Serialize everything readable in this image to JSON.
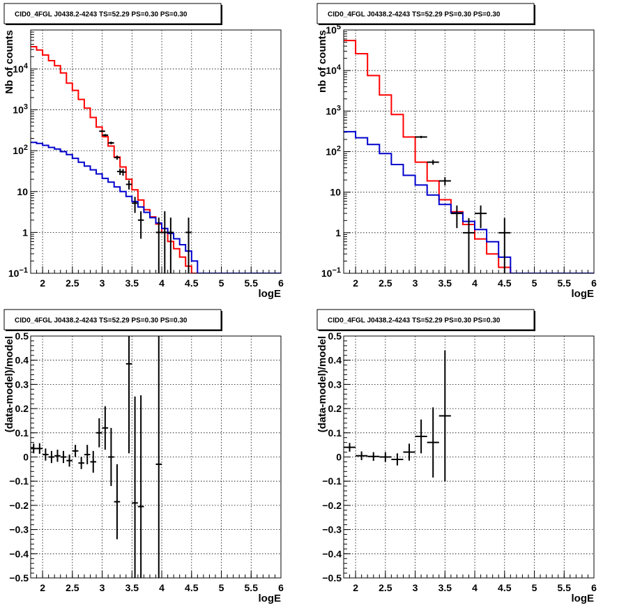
{
  "colors": {
    "data": "#000000",
    "total_model": "#ff0000",
    "background_model": "#0000cc",
    "grid": "#000000"
  },
  "chart_data": [
    {
      "type": "step-histogram",
      "title": "CID0_4FGL J0438.2-4243 TS=52.29 PS=0.30 PS=0.30",
      "xlabel": "logE",
      "ylabel": "Nb of counts",
      "yscale": "log",
      "xlim": [
        1.8,
        6.0
      ],
      "ylim": [
        0.1,
        90000
      ],
      "x_ticks": [
        "2",
        "2.5",
        "3",
        "3.5",
        "4",
        "4.5",
        "5",
        "5.5",
        "6"
      ],
      "y_ticks": [
        {
          "value": 0.1,
          "base": "10",
          "exp": "−1"
        },
        {
          "value": 1,
          "label": "1"
        },
        {
          "value": 10,
          "label": "10"
        },
        {
          "value": 100,
          "base": "10",
          "exp": "2"
        },
        {
          "value": 1000,
          "base": "10",
          "exp": "3"
        },
        {
          "value": 10000,
          "base": "10",
          "exp": "4"
        }
      ],
      "grid": true,
      "bin_edges": [
        1.8,
        1.9,
        2.0,
        2.1,
        2.2,
        2.3,
        2.4,
        2.5,
        2.6,
        2.7,
        2.8,
        2.9,
        3.0,
        3.1,
        3.2,
        3.3,
        3.4,
        3.5,
        3.6,
        3.7,
        3.8,
        3.9,
        4.0,
        4.1,
        4.2,
        4.3,
        4.4,
        4.5,
        4.6,
        4.7,
        4.8,
        4.9,
        5.0,
        5.1,
        5.2,
        5.3,
        5.4,
        5.5,
        5.6,
        5.7,
        5.8,
        5.9,
        6.0
      ],
      "series": [
        {
          "role": "total_model",
          "values": [
            35000,
            29000,
            22000,
            16000,
            12000,
            8000,
            4500,
            3000,
            1800,
            1100,
            650,
            380,
            220,
            130,
            70,
            40,
            20,
            11,
            6.2,
            3.6,
            2.4,
            1.6,
            1.0,
            0.6,
            0.4,
            0.25,
            0.15,
            0.1,
            0.09,
            0.09,
            0.09,
            0.09,
            0.09,
            0.09,
            0.09,
            0.09,
            0.09,
            0.09,
            0.09,
            0.09,
            0.09,
            0.09
          ]
        },
        {
          "role": "background_model",
          "values": [
            160,
            150,
            135,
            120,
            110,
            95,
            80,
            65,
            52,
            42,
            34,
            27,
            21,
            17,
            13,
            10,
            7.6,
            5.7,
            4.2,
            3.1,
            2.3,
            1.7,
            1.25,
            0.95,
            0.7,
            0.5,
            0.35,
            0.2,
            0.1,
            0.1,
            0.1,
            0.1,
            0.1,
            0.1,
            0.1,
            0.1,
            0.1,
            0.1,
            0.1,
            0.1,
            0.1,
            0.1
          ]
        }
      ],
      "points": [
        {
          "x": 3.0,
          "y": 300,
          "yerr": [
            17,
            17
          ],
          "xerr": 0.05
        },
        {
          "x": 3.05,
          "y": 240,
          "yerr": [
            15,
            15
          ],
          "xerr": 0.05
        },
        {
          "x": 3.15,
          "y": 155,
          "yerr": [
            12,
            12
          ],
          "xerr": 0.05
        },
        {
          "x": 3.25,
          "y": 68,
          "yerr": [
            8,
            8
          ],
          "xerr": 0.05
        },
        {
          "x": 3.3,
          "y": 31,
          "yerr": [
            5.5,
            5.5
          ],
          "xerr": 0.05
        },
        {
          "x": 3.35,
          "y": 30,
          "yerr": [
            5.5,
            5.5
          ],
          "xerr": 0.05
        },
        {
          "x": 3.45,
          "y": 15,
          "yerr": [
            3.8,
            3.8
          ],
          "xerr": 0.05
        },
        {
          "x": 3.55,
          "y": 5.2,
          "yerr": [
            2.2,
            2.2
          ],
          "xerr": 0.05
        },
        {
          "x": 3.65,
          "y": 2.0,
          "yerr": [
            1.3,
            1.3
          ],
          "xerr": 0.05
        },
        {
          "x": 3.95,
          "y": 1.0,
          "yerr": [
            0.95,
            1.3
          ],
          "xerr": 0.05
        },
        {
          "x": 4.05,
          "y": 1.0,
          "yerr": [
            0.95,
            2.3
          ],
          "xerr": 0.05
        },
        {
          "x": 4.15,
          "y": 1.0,
          "yerr": [
            0.95,
            1.3
          ],
          "xerr": 0.05
        },
        {
          "x": 4.45,
          "y": 1.0,
          "yerr": [
            0.95,
            1.3
          ],
          "xerr": 0.05
        }
      ]
    },
    {
      "type": "step-histogram",
      "title": "CID0_4FGL J0438.2-4243 TS=52.29 PS=0.30 PS=0.30",
      "xlabel": "logE",
      "ylabel": "nb of counts",
      "yscale": "log",
      "xlim": [
        1.8,
        6.0
      ],
      "ylim": [
        0.1,
        100000
      ],
      "x_ticks": [
        "2",
        "2.5",
        "3",
        "3.5",
        "4",
        "4.5",
        "5",
        "5.5",
        "6"
      ],
      "y_ticks": [
        {
          "value": 0.1,
          "base": "10",
          "exp": "−1"
        },
        {
          "value": 1,
          "label": "1"
        },
        {
          "value": 10,
          "label": "10"
        },
        {
          "value": 100,
          "base": "10",
          "exp": "2"
        },
        {
          "value": 1000,
          "base": "10",
          "exp": "3"
        },
        {
          "value": 10000,
          "base": "10",
          "exp": "4"
        },
        {
          "value": 100000,
          "base": "10",
          "exp": "5"
        }
      ],
      "grid": true,
      "bin_edges": [
        1.8,
        2.0,
        2.2,
        2.4,
        2.6,
        2.8,
        3.0,
        3.2,
        3.4,
        3.6,
        3.8,
        4.0,
        4.2,
        4.4,
        4.6,
        4.8,
        5.0,
        5.2,
        5.4,
        5.6,
        5.8,
        6.0
      ],
      "series": [
        {
          "role": "total_model",
          "values": [
            55000,
            26000,
            7500,
            2500,
            820,
            230,
            55,
            19,
            6.5,
            3.3,
            1.6,
            0.7,
            0.3,
            0.14,
            0.1,
            0.1,
            0.1,
            0.1,
            0.1,
            0.1,
            0.1
          ]
        },
        {
          "role": "background_model",
          "values": [
            310,
            220,
            150,
            90,
            48,
            26,
            15,
            8.5,
            5.0,
            3.1,
            1.9,
            1.2,
            0.6,
            0.25,
            0.1,
            0.1,
            0.1,
            0.1,
            0.1,
            0.1,
            0.1
          ]
        }
      ],
      "points": [
        {
          "x": 3.1,
          "y": 230,
          "yerr": [
            15,
            15
          ],
          "xerr": 0.1
        },
        {
          "x": 3.3,
          "y": 55,
          "yerr": [
            7.4,
            7.4
          ],
          "xerr": 0.1
        },
        {
          "x": 3.5,
          "y": 19,
          "yerr": [
            4.4,
            4.4
          ],
          "xerr": 0.1
        },
        {
          "x": 3.7,
          "y": 3.0,
          "yerr": [
            1.7,
            1.7
          ],
          "xerr": 0.1
        },
        {
          "x": 3.9,
          "y": 1.0,
          "yerr": [
            0.95,
            1.3
          ],
          "xerr": 0.1
        },
        {
          "x": 4.1,
          "y": 3.0,
          "yerr": [
            1.7,
            1.7
          ],
          "xerr": 0.1
        },
        {
          "x": 4.5,
          "y": 1.0,
          "yerr": [
            0.95,
            1.3
          ],
          "xerr": 0.1
        }
      ]
    },
    {
      "type": "scatter",
      "title": "CID0_4FGL J0438.2-4243 TS=52.29 PS=0.30 PS=0.30",
      "xlabel": "logE",
      "ylabel": "(data-model)/model",
      "yscale": "linear",
      "xlim": [
        1.8,
        6.0
      ],
      "ylim": [
        -0.5,
        0.5
      ],
      "x_ticks": [
        "2",
        "2.5",
        "3",
        "3.5",
        "4",
        "4.5",
        "5",
        "5.5",
        "6"
      ],
      "y_ticks": [
        "−0.5",
        "−0.4",
        "−0.3",
        "−0.2",
        "−0.1",
        "0",
        "0.1",
        "0.2",
        "0.3",
        "0.4",
        "0.5"
      ],
      "grid": true,
      "points": [
        {
          "x": 1.85,
          "y": 0.035,
          "xerr": 0.05,
          "yerr": 0.02
        },
        {
          "x": 1.95,
          "y": 0.035,
          "xerr": 0.05,
          "yerr": 0.022
        },
        {
          "x": 2.05,
          "y": 0.01,
          "xerr": 0.05,
          "yerr": 0.025
        },
        {
          "x": 2.15,
          "y": 0.0,
          "xerr": 0.05,
          "yerr": 0.025
        },
        {
          "x": 2.25,
          "y": 0.005,
          "xerr": 0.05,
          "yerr": 0.025
        },
        {
          "x": 2.35,
          "y": 0.0,
          "xerr": 0.05,
          "yerr": 0.025
        },
        {
          "x": 2.45,
          "y": -0.015,
          "xerr": 0.05,
          "yerr": 0.025
        },
        {
          "x": 2.55,
          "y": 0.025,
          "xerr": 0.05,
          "yerr": 0.025
        },
        {
          "x": 2.65,
          "y": -0.025,
          "xerr": 0.05,
          "yerr": 0.025
        },
        {
          "x": 2.75,
          "y": 0.01,
          "xerr": 0.05,
          "yerr": 0.04
        },
        {
          "x": 2.85,
          "y": -0.02,
          "xerr": 0.05,
          "yerr": 0.045
        },
        {
          "x": 2.95,
          "y": 0.1,
          "xerr": 0.05,
          "yerr": 0.06
        },
        {
          "x": 3.05,
          "y": 0.12,
          "xerr": 0.05,
          "yerr": 0.09
        },
        {
          "x": 3.15,
          "y": 0.0,
          "xerr": 0.05,
          "yerr": 0.12
        },
        {
          "x": 3.25,
          "y": -0.185,
          "xerr": 0.05,
          "yerr": 0.155
        },
        {
          "x": 3.45,
          "y": 0.385,
          "xerr": 0.05,
          "yerr": 0.37
        },
        {
          "x": 3.55,
          "y": -0.19,
          "xerr": 0.05,
          "yerr": 0.44
        },
        {
          "x": 3.65,
          "y": -0.205,
          "xerr": 0.05,
          "yerr": 0.46
        },
        {
          "x": 3.95,
          "y": -0.03,
          "xerr": 0.05,
          "yerr": 0.95
        }
      ]
    },
    {
      "type": "scatter",
      "title": "CID0_4FGL J0438.2-4243 TS=52.29 PS=0.30 PS=0.30",
      "xlabel": "logE",
      "ylabel": "(data-model)/model",
      "yscale": "linear",
      "xlim": [
        1.8,
        6.0
      ],
      "ylim": [
        -0.5,
        0.5
      ],
      "x_ticks": [
        "2",
        "2.5",
        "3",
        "3.5",
        "4",
        "4.5",
        "5",
        "5.5",
        "6"
      ],
      "y_ticks": [
        "−0.5",
        "−0.4",
        "−0.3",
        "−0.2",
        "−0.1",
        "0",
        "0.1",
        "0.2",
        "0.3",
        "0.4",
        "0.5"
      ],
      "grid": true,
      "points": [
        {
          "x": 1.9,
          "y": 0.04,
          "xerr": 0.1,
          "yerr": 0.018
        },
        {
          "x": 2.1,
          "y": 0.005,
          "xerr": 0.1,
          "yerr": 0.018
        },
        {
          "x": 2.3,
          "y": 0.002,
          "xerr": 0.1,
          "yerr": 0.018
        },
        {
          "x": 2.5,
          "y": 0.0,
          "xerr": 0.1,
          "yerr": 0.02
        },
        {
          "x": 2.7,
          "y": -0.01,
          "xerr": 0.1,
          "yerr": 0.025
        },
        {
          "x": 2.9,
          "y": 0.02,
          "xerr": 0.1,
          "yerr": 0.035
        },
        {
          "x": 3.1,
          "y": 0.085,
          "xerr": 0.1,
          "yerr": 0.07
        },
        {
          "x": 3.3,
          "y": 0.06,
          "xerr": 0.1,
          "yerr": 0.145
        },
        {
          "x": 3.5,
          "y": 0.17,
          "xerr": 0.1,
          "yerr": 0.27
        }
      ]
    }
  ]
}
